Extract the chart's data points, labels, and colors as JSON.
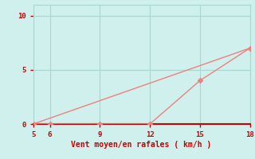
{
  "line1_x": [
    5,
    18
  ],
  "line1_y": [
    0,
    7
  ],
  "line2_x": [
    5,
    6,
    9,
    12,
    15,
    18
  ],
  "line2_y": [
    0,
    0,
    0,
    0,
    4,
    7
  ],
  "line_color": "#f08080",
  "bg_color": "#cff0ec",
  "xlabel": "Vent moyen/en rafales ( km/h )",
  "xticks": [
    5,
    6,
    9,
    12,
    15,
    18
  ],
  "yticks": [
    0,
    5,
    10
  ],
  "xlim": [
    5,
    18
  ],
  "ylim": [
    0,
    11
  ],
  "xlabel_color": "#cc0000",
  "tick_color": "#cc0000",
  "grid_color": "#aad8d0",
  "spine_color_lr": "#aad8d0",
  "spine_color_bot": "#cc0000",
  "spine_color_top": "#aad8d0",
  "linewidth": 1.0,
  "marker_size": 3.5
}
